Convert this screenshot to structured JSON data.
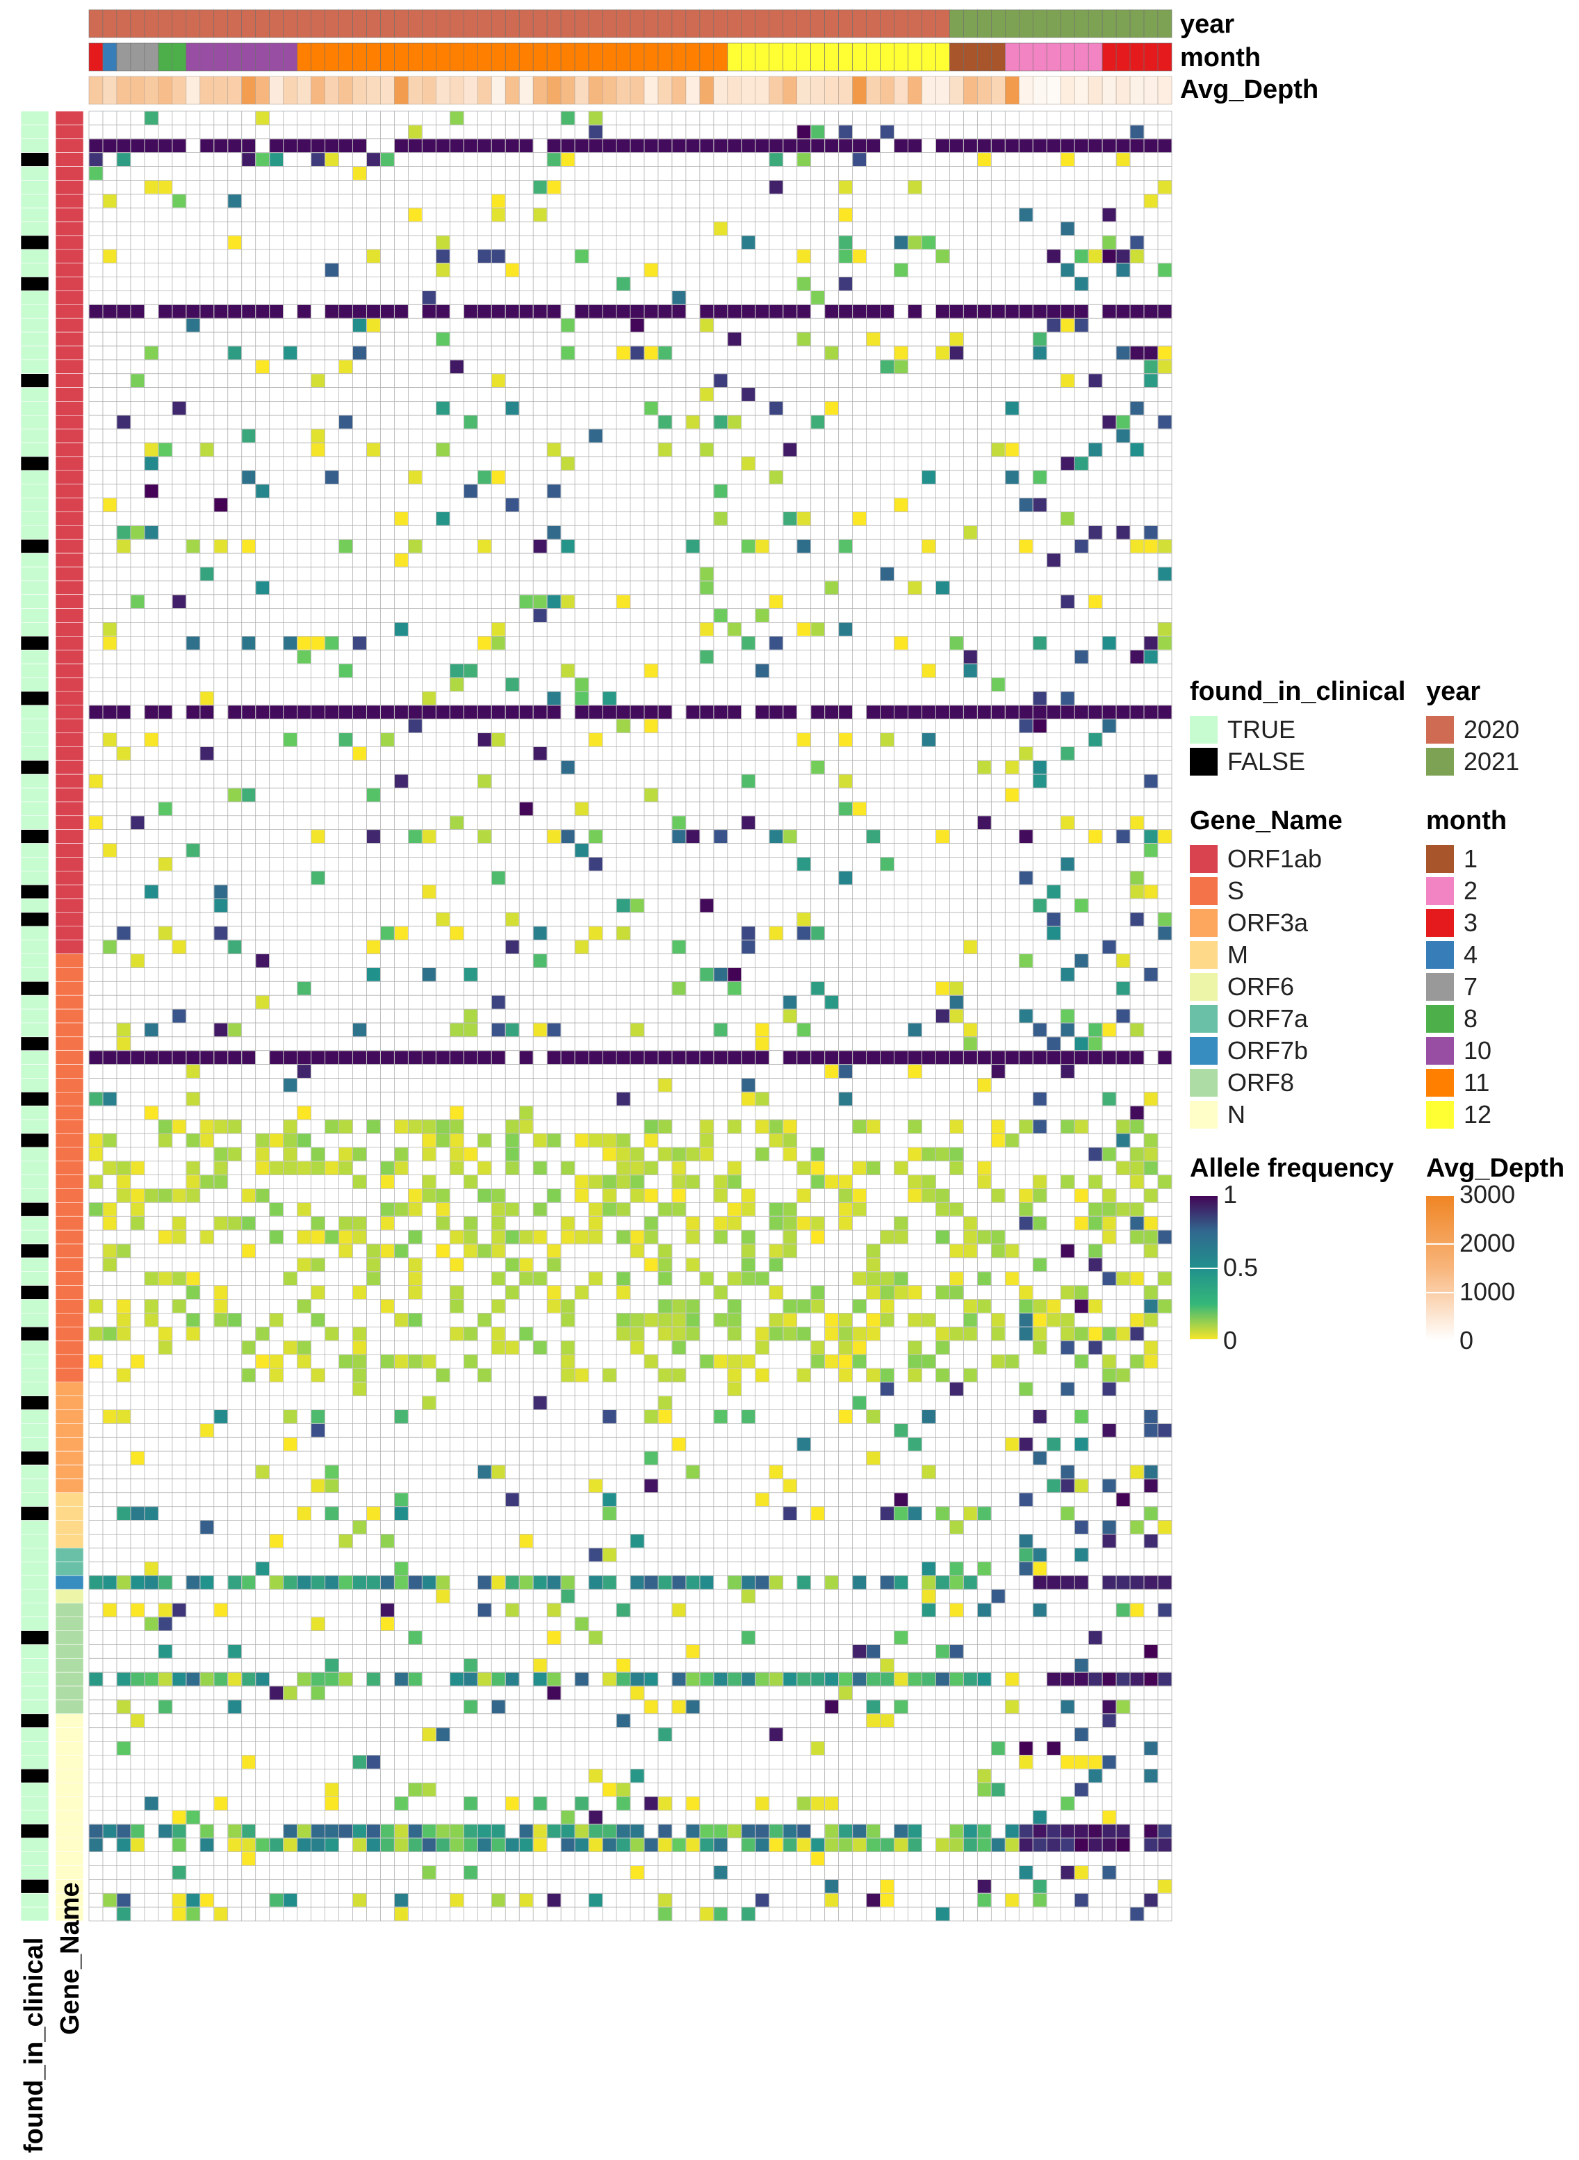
{
  "chart_data": {
    "type": "heatmap",
    "title": "",
    "n_columns": 78,
    "n_rows": 131,
    "value_label": "Allele frequency",
    "value_range": [
      0,
      1
    ],
    "cell_background": "#ffffff",
    "grid_color": "#b0b0b0",
    "column_annotations": {
      "year": {
        "label": "year",
        "groups": [
          {
            "value": "2020",
            "count": 62
          },
          {
            "value": "2021",
            "count": 16
          }
        ]
      },
      "month": {
        "label": "month",
        "groups": [
          {
            "value": "3",
            "count": 1
          },
          {
            "value": "4",
            "count": 1
          },
          {
            "value": "7",
            "count": 3
          },
          {
            "value": "8",
            "count": 2
          },
          {
            "value": "10",
            "count": 8
          },
          {
            "value": "11",
            "count": 31
          },
          {
            "value": "12",
            "count": 16
          },
          {
            "value": "1",
            "count": 4
          },
          {
            "value": "2",
            "count": 7
          },
          {
            "value": "3",
            "count": 5
          }
        ]
      },
      "avg_depth": {
        "label": "Avg_Depth",
        "range": [
          0,
          3000
        ]
      }
    },
    "row_annotations": {
      "gene_name": {
        "label": "Gene_Name",
        "groups": [
          {
            "value": "ORF1ab",
            "count": 61
          },
          {
            "value": "S",
            "count": 31
          },
          {
            "value": "ORF3a",
            "count": 8
          },
          {
            "value": "M",
            "count": 4
          },
          {
            "value": "ORF7a",
            "count": 2
          },
          {
            "value": "ORF7b",
            "count": 1
          },
          {
            "value": "ORF6",
            "count": 1
          },
          {
            "value": "ORF8",
            "count": 8
          },
          {
            "value": "N",
            "count": 15
          }
        ]
      },
      "found_in_clinical": {
        "label": "found_in_clinical",
        "false_rows": [
          3,
          9,
          12,
          19,
          25,
          31,
          38,
          42,
          47,
          52,
          56,
          58,
          63,
          67,
          71,
          74,
          79,
          82,
          85,
          88,
          93,
          97,
          101,
          110,
          116,
          120,
          124,
          128
        ]
      }
    },
    "strong_rows": [
      2,
      14,
      43,
      68
    ],
    "dense_rows": [
      106,
      113,
      124,
      125
    ],
    "seed": 20210
  },
  "legends": {
    "found_in_clinical": {
      "title": "found_in_clinical",
      "items": [
        {
          "label": "TRUE",
          "color": "#c7fcd0"
        },
        {
          "label": "FALSE",
          "color": "#000000"
        }
      ]
    },
    "year": {
      "title": "year",
      "items": [
        {
          "label": "2020",
          "color": "#cf6b53"
        },
        {
          "label": "2021",
          "color": "#7ea253"
        }
      ]
    },
    "gene_name": {
      "title": "Gene_Name",
      "items": [
        {
          "label": "ORF1ab",
          "color": "#d8434f"
        },
        {
          "label": "S",
          "color": "#f57348"
        },
        {
          "label": "ORF3a",
          "color": "#fca65e"
        },
        {
          "label": "M",
          "color": "#fdd989"
        },
        {
          "label": "ORF6",
          "color": "#ecf5a8"
        },
        {
          "label": "ORF7a",
          "color": "#69c0a6"
        },
        {
          "label": "ORF7b",
          "color": "#378cc0"
        },
        {
          "label": "ORF8",
          "color": "#addca4"
        },
        {
          "label": "N",
          "color": "#fffdc8"
        }
      ]
    },
    "month": {
      "title": "month",
      "items": [
        {
          "label": "1",
          "color": "#a8552c"
        },
        {
          "label": "2",
          "color": "#f384c4"
        },
        {
          "label": "3",
          "color": "#e41a1c"
        },
        {
          "label": "4",
          "color": "#377eb8"
        },
        {
          "label": "7",
          "color": "#999999"
        },
        {
          "label": "8",
          "color": "#4daf4a"
        },
        {
          "label": "10",
          "color": "#984ea3"
        },
        {
          "label": "11",
          "color": "#ff7f00"
        },
        {
          "label": "12",
          "color": "#ffff33"
        }
      ]
    },
    "allele_frequency": {
      "title": "Allele frequency",
      "ticks": [
        "1",
        "0.5",
        "0"
      ],
      "colors": [
        "#440154",
        "#31688e",
        "#21908d",
        "#35b779",
        "#fde725"
      ]
    },
    "avg_depth": {
      "title": "Avg_Depth",
      "ticks": [
        "3000",
        "2000",
        "1000",
        "0"
      ],
      "colors": [
        "#ef8423",
        "#f8b57b",
        "#ffffff"
      ]
    }
  },
  "labels": {
    "year": "year",
    "month": "month",
    "avg_depth": "Avg_Depth",
    "found_in_clinical": "found_in_clinical",
    "gene_name": "Gene_Name"
  }
}
